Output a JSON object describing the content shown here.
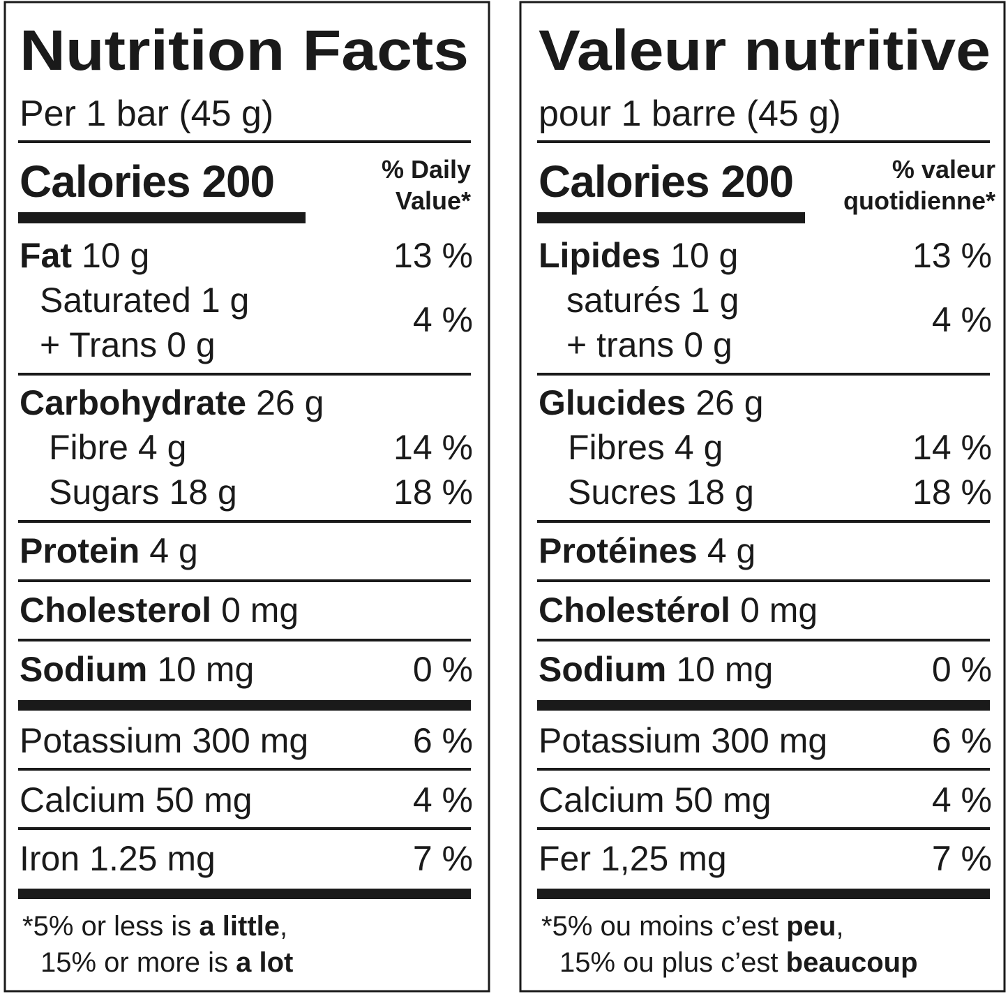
{
  "panels": [
    {
      "title": "Nutrition Facts",
      "serving": "Per 1 bar (45 g)",
      "calories": "Calories 200",
      "dv_header": [
        "% Daily",
        "Value*"
      ],
      "nutrients": [
        {
          "name": "Fat",
          "amount": "10 g",
          "dv": "13 %"
        },
        {
          "name": "Saturated",
          "amount": "1 g",
          "dv": "4 %"
        },
        {
          "name": "+ Trans",
          "amount": "0 g"
        },
        {
          "name": "Carbohydrate",
          "amount": "26 g"
        },
        {
          "name": "Fibre",
          "amount": "4 g",
          "dv": "14 %"
        },
        {
          "name": "Sugars",
          "amount": "18 g",
          "dv": "18 %"
        },
        {
          "name": "Protein",
          "amount": "4 g"
        },
        {
          "name": "Cholesterol",
          "amount": "0 mg"
        },
        {
          "name": "Sodium",
          "amount": "10 mg",
          "dv": "0 %"
        },
        {
          "name": "Potassium",
          "amount": "300 mg",
          "dv": "6 %"
        },
        {
          "name": "Calcium",
          "amount": "50 mg",
          "dv": "4 %"
        },
        {
          "name": "Iron",
          "amount": "1.25 mg",
          "dv": "7 %"
        }
      ],
      "footnote": [
        [
          "*5% or less is ",
          "a little",
          ","
        ],
        [
          "15% or more is ",
          "a lot"
        ]
      ]
    },
    {
      "title": "Valeur nutritive",
      "serving": "pour 1 barre (45 g)",
      "calories": "Calories 200",
      "dv_header": [
        "% valeur",
        "quotidienne*"
      ],
      "nutrients": [
        {
          "name": "Lipides",
          "amount": "10 g",
          "dv": "13 %"
        },
        {
          "name": "saturés",
          "amount": "1 g",
          "dv": "4 %"
        },
        {
          "name": "+ trans",
          "amount": "0 g"
        },
        {
          "name": "Glucides",
          "amount": "26 g"
        },
        {
          "name": "Fibres",
          "amount": "4 g",
          "dv": "14 %"
        },
        {
          "name": "Sucres",
          "amount": "18 g",
          "dv": "18 %"
        },
        {
          "name": "Protéines",
          "amount": "4 g"
        },
        {
          "name": "Cholestérol",
          "amount": "0 mg"
        },
        {
          "name": "Sodium",
          "amount": "10 mg",
          "dv": "0 %"
        },
        {
          "name": "Potassium",
          "amount": "300 mg",
          "dv": "6 %"
        },
        {
          "name": "Calcium",
          "amount": "50 mg",
          "dv": "4 %"
        },
        {
          "name": "Fer",
          "amount": "1,25 mg",
          "dv": "7 %"
        }
      ],
      "footnote": [
        [
          "*5% ou moins c’est ",
          "peu",
          ","
        ],
        [
          "15% ou plus c’est ",
          "beaucoup"
        ]
      ]
    }
  ]
}
